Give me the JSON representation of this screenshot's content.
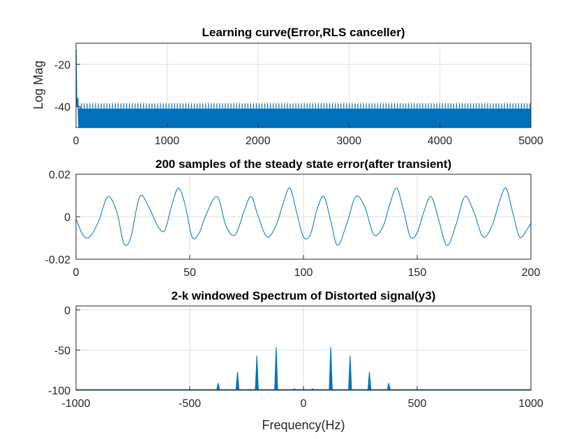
{
  "colors": {
    "series": "#0072BD",
    "axis": "#262626",
    "grid": "#dfdfdf"
  },
  "chart_data": [
    {
      "type": "line",
      "title": "Learning curve(Error,RLS canceller)",
      "xlabel": "",
      "ylabel": "Log Mag",
      "xlim": [
        0,
        5000
      ],
      "ylim": [
        -50,
        -10
      ],
      "xticks": [
        0,
        1000,
        2000,
        3000,
        4000,
        5000
      ],
      "yticks": [
        -40,
        -20
      ],
      "grid": true,
      "description_values": {
        "initial_peak": -13,
        "transient_values": [
          -13,
          -36,
          -40
        ],
        "steady_upper": -38.5,
        "steady_mid": -41,
        "floor": -50
      }
    },
    {
      "type": "line",
      "title": "200 samples of the steady state error(after transient)",
      "xlabel": "",
      "ylabel": "",
      "xlim": [
        0,
        200
      ],
      "ylim": [
        -0.02,
        0.02
      ],
      "xticks": [
        0,
        50,
        100,
        150,
        200
      ],
      "yticks": [
        -0.02,
        0,
        0.02
      ],
      "ytick_labels": [
        "-0.02",
        "0",
        "0.02"
      ],
      "grid": true,
      "x": [
        0,
        3,
        6,
        10,
        14,
        18,
        21,
        24,
        28,
        32,
        36,
        39,
        42,
        45,
        48,
        51,
        54,
        57,
        62,
        66,
        70,
        74,
        77,
        80,
        84,
        88,
        91,
        94,
        97,
        100,
        103,
        106,
        109,
        112,
        115,
        119,
        123,
        127,
        131,
        135,
        138,
        141,
        144,
        147,
        150,
        153,
        156,
        159,
        163,
        167,
        171,
        175,
        179,
        183,
        186,
        189,
        192,
        195,
        198,
        200
      ],
      "y": [
        -0.001,
        -0.0085,
        -0.0095,
        -0.002,
        0.0095,
        0.002,
        -0.0125,
        -0.01,
        0.0095,
        0.0045,
        -0.0045,
        -0.0065,
        0.005,
        0.0135,
        0.0055,
        -0.0095,
        -0.008,
        0.0005,
        0.0095,
        -0.0045,
        -0.0085,
        0.003,
        0.0095,
        0.0005,
        -0.0095,
        -0.004,
        0.006,
        0.0135,
        0.002,
        -0.0095,
        -0.0085,
        0.0035,
        0.0095,
        -0.002,
        -0.0135,
        -0.0035,
        0.0095,
        0.0045,
        -0.0085,
        -0.0045,
        0.006,
        0.0135,
        0.003,
        -0.0095,
        -0.0075,
        0.0025,
        0.0095,
        0.0005,
        -0.0135,
        -0.004,
        0.0095,
        0.002,
        -0.0095,
        -0.004,
        0.0065,
        0.0135,
        0.002,
        -0.0095,
        -0.0065,
        -0.003
      ]
    },
    {
      "type": "bar",
      "title": "2-k windowed Spectrum of Distorted signal(y3)",
      "xlabel": "Frequency(Hz)",
      "ylabel": "",
      "xlim": [
        -1000,
        1000
      ],
      "ylim": [
        -100,
        5
      ],
      "xticks": [
        -1000,
        -500,
        0,
        500,
        1000
      ],
      "yticks": [
        -100,
        -50,
        0
      ],
      "grid": true,
      "floor": -100,
      "x": [
        -375,
        -290,
        -205,
        -120,
        -40,
        40,
        120,
        205,
        290,
        375
      ],
      "values": [
        -91,
        -77,
        -57,
        -46,
        -98,
        -98,
        -46,
        -57,
        -77,
        -91
      ]
    }
  ]
}
